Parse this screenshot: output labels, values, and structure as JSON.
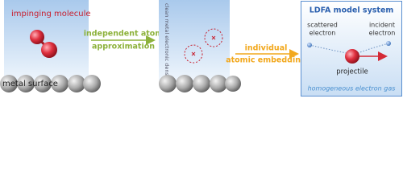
{
  "panel1": {
    "label": "impinging molecule",
    "surface": "metal surface"
  },
  "arrow1": {
    "lines": [
      "independent atom",
      "approximation"
    ]
  },
  "panel2": {
    "density": "clean metal electronic density"
  },
  "arrow2": {
    "lines": [
      "individual",
      "atomic embedding"
    ]
  },
  "panel3": {
    "title": "LDFA model system",
    "scattered": [
      "scattered",
      "electron"
    ],
    "incident": [
      "incident",
      "electron"
    ],
    "projectile": "projectile",
    "gas": "homogeneous electron gas"
  }
}
